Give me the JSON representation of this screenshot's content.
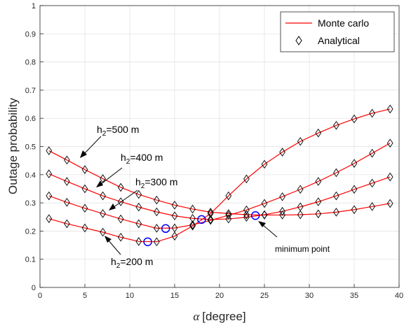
{
  "chart_data": {
    "type": "line",
    "xlabel": "[degree]",
    "xlabel_symbol": "α",
    "ylabel": "Outage probability",
    "xlim": [
      0,
      40
    ],
    "ylim": [
      0,
      1
    ],
    "xticks": [
      "0",
      "5",
      "10",
      "15",
      "20",
      "25",
      "30",
      "35",
      "40"
    ],
    "yticks": [
      "0",
      "0.1",
      "0.2",
      "0.3",
      "0.4",
      "0.5",
      "0.6",
      "0.7",
      "0.8",
      "0.9",
      "1"
    ],
    "grid": true,
    "legend_position": "top-right",
    "legend": [
      {
        "label": "Monte carlo",
        "style": "line",
        "color": "#ff0000"
      },
      {
        "label": "Analytical",
        "style": "diamond",
        "color": "#000000"
      }
    ],
    "x": [
      1,
      3,
      5,
      7,
      9,
      11,
      13,
      15,
      17,
      19,
      21,
      23,
      25,
      27,
      29,
      31,
      33,
      35,
      37,
      39
    ],
    "series": [
      {
        "h2": "500",
        "values": [
          0.485,
          0.452,
          0.418,
          0.386,
          0.355,
          0.33,
          0.31,
          0.292,
          0.278,
          0.267,
          0.262,
          0.258,
          0.257,
          0.257,
          0.258,
          0.261,
          0.267,
          0.276,
          0.287,
          0.298
        ]
      },
      {
        "h2": "400",
        "values": [
          0.403,
          0.376,
          0.35,
          0.325,
          0.304,
          0.285,
          0.268,
          0.254,
          0.245,
          0.241,
          0.243,
          0.249,
          0.258,
          0.27,
          0.286,
          0.304,
          0.325,
          0.348,
          0.37,
          0.392
        ]
      },
      {
        "h2": "300",
        "values": [
          0.325,
          0.302,
          0.281,
          0.262,
          0.243,
          0.226,
          0.21,
          0.211,
          0.222,
          0.238,
          0.256,
          0.275,
          0.298,
          0.322,
          0.348,
          0.376,
          0.407,
          0.44,
          0.476,
          0.512
        ]
      },
      {
        "h2": "200",
        "values": [
          0.244,
          0.226,
          0.211,
          0.196,
          0.178,
          0.163,
          0.162,
          0.182,
          0.218,
          0.262,
          0.325,
          0.385,
          0.437,
          0.48,
          0.518,
          0.548,
          0.575,
          0.598,
          0.618,
          0.633
        ]
      }
    ],
    "minimum_points": [
      {
        "x": 12,
        "y": 0.162
      },
      {
        "x": 14,
        "y": 0.209
      },
      {
        "x": 18,
        "y": 0.241
      },
      {
        "x": 24,
        "y": 0.255
      }
    ],
    "marker_color": "#0000ff",
    "annotations": {
      "h2_500": {
        "pre": "h",
        "sub": "2",
        "post": "=500 m"
      },
      "h2_400": {
        "pre": "h",
        "sub": "2",
        "post": "=400 m"
      },
      "h2_300": {
        "pre": "h",
        "sub": "2",
        "post": "=300 m"
      },
      "h2_200": {
        "pre": "h",
        "sub": "2",
        "post": "=200 m"
      },
      "minimum": "minimum point"
    }
  }
}
